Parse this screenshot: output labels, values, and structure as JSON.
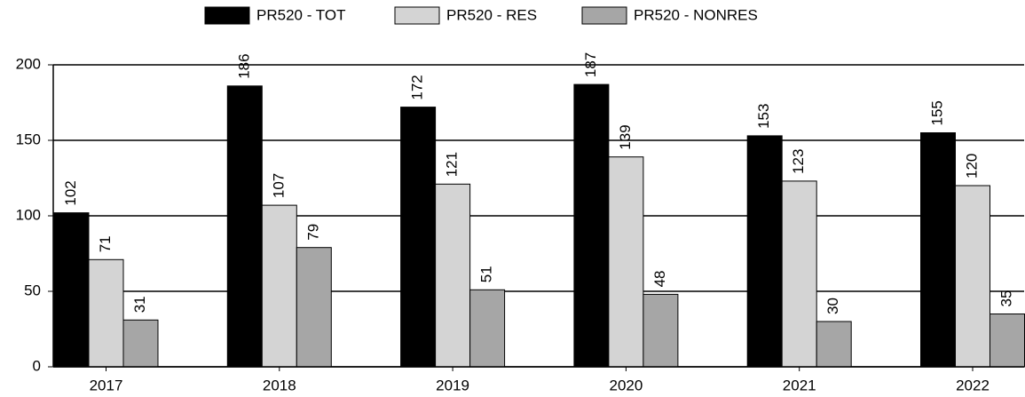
{
  "chart_data": {
    "type": "bar",
    "categories": [
      "2017",
      "2018",
      "2019",
      "2020",
      "2021",
      "2022"
    ],
    "series": [
      {
        "name": "PR520 - TOT",
        "color": "#000000",
        "values": [
          102,
          186,
          172,
          187,
          153,
          155
        ]
      },
      {
        "name": "PR520 - RES",
        "color": "#d4d4d4",
        "values": [
          71,
          107,
          121,
          139,
          123,
          120
        ]
      },
      {
        "name": "PR520 - NONRES",
        "color": "#a6a6a6",
        "values": [
          31,
          79,
          51,
          48,
          30,
          35
        ]
      }
    ],
    "ylim": [
      0,
      200
    ],
    "yticks": [
      0,
      50,
      100,
      150,
      200
    ],
    "grid": true,
    "legend": "top"
  }
}
